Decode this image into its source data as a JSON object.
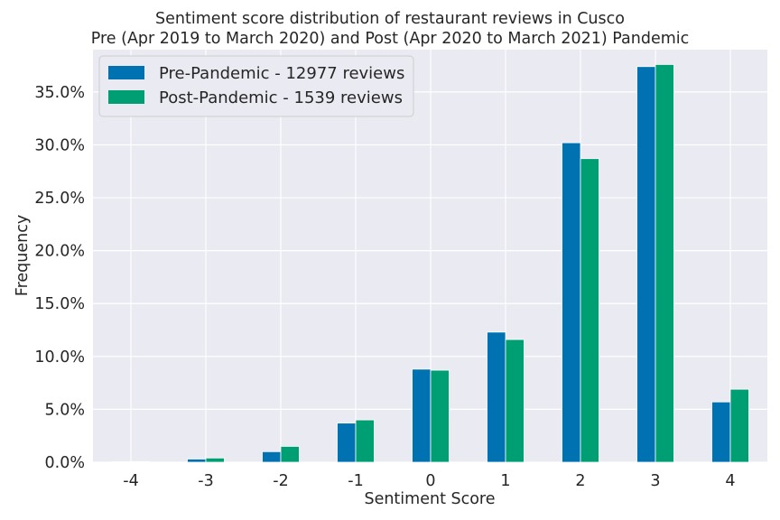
{
  "chart_data": {
    "type": "bar",
    "title": "Sentiment score distribution of restaurant reviews in Cusco",
    "subtitle": "Pre (Apr 2019 to March 2020) and Post (Apr 2020 to March 2021) Pandemic",
    "xlabel": "Sentiment Score",
    "ylabel": "Frequency",
    "categories": [
      "-4",
      "-3",
      "-2",
      "-1",
      "0",
      "1",
      "2",
      "3",
      "4"
    ],
    "ylim": [
      0,
      0.39
    ],
    "yticks": [
      0,
      0.05,
      0.1,
      0.15,
      0.2,
      0.25,
      0.3,
      0.35
    ],
    "ytick_labels": [
      "0.0%",
      "5.0%",
      "10.0%",
      "15.0%",
      "20.0%",
      "25.0%",
      "30.0%",
      "35.0%"
    ],
    "grid": true,
    "legend_position": "top-left",
    "series": [
      {
        "name": "Pre-Pandemic - 12977 reviews",
        "color": "#0072B2",
        "values": [
          0.0005,
          0.003,
          0.01,
          0.037,
          0.088,
          0.123,
          0.302,
          0.374,
          0.057
        ]
      },
      {
        "name": "Post-Pandemic - 1539 reviews",
        "color": "#009E73",
        "values": [
          0.0006,
          0.004,
          0.015,
          0.04,
          0.087,
          0.116,
          0.287,
          0.376,
          0.069
        ]
      }
    ]
  }
}
